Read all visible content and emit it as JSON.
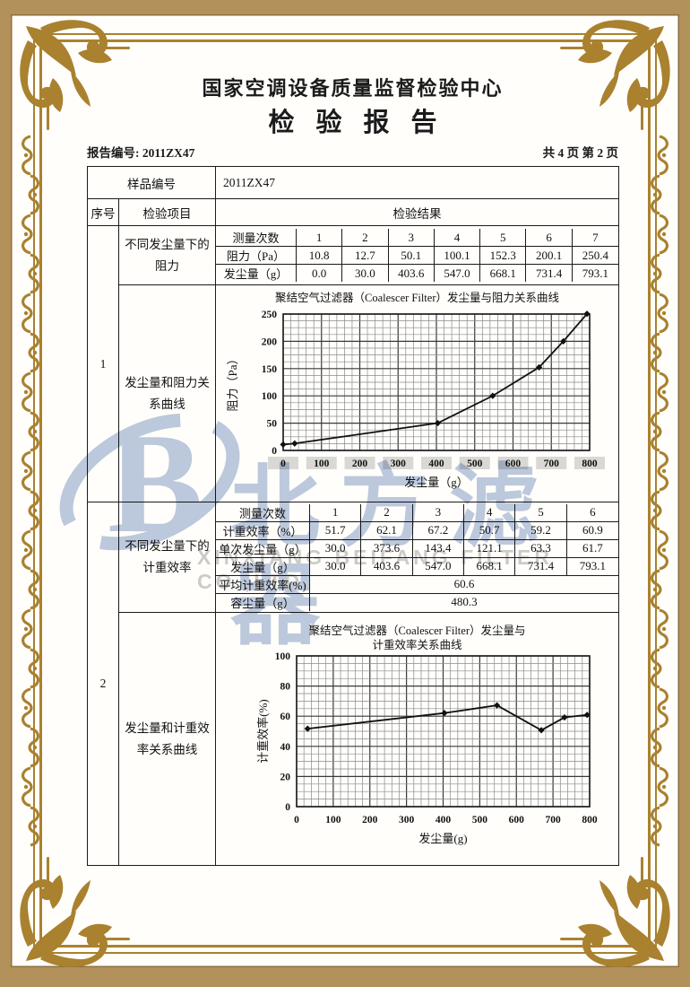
{
  "header": {
    "center_name": "国家空调设备质量监督检验中心",
    "report_title": "检验报告",
    "report_no_label": "报告编号:",
    "report_no_value": "2011ZX47",
    "page_info": "共 4 页 第 2 页"
  },
  "table": {
    "sample_no_label": "样品编号",
    "sample_no_value": "2011ZX47",
    "seq_header": "序号",
    "item_header": "检验项目",
    "result_header": "检验结果"
  },
  "sections": [
    {
      "seq": "1",
      "item_table_label": "不同发尘量下的阻力",
      "item_chart_label": "发尘量和阻力关系曲线",
      "table": {
        "header_label": "测量次数",
        "header_values": [
          "1",
          "2",
          "3",
          "4",
          "5",
          "6",
          "7"
        ],
        "rows": [
          {
            "label": "阻力（Pa）",
            "values": [
              "10.8",
              "12.7",
              "50.1",
              "100.1",
              "152.3",
              "200.1",
              "250.4"
            ]
          },
          {
            "label": "发尘量（g）",
            "values": [
              "0.0",
              "30.0",
              "403.6",
              "547.0",
              "668.1",
              "731.4",
              "793.1"
            ]
          }
        ]
      }
    },
    {
      "seq": "2",
      "item_table_label": "不同发尘量下的计重效率",
      "item_chart_label": "发尘量和计重效率关系曲线",
      "table": {
        "header_label": "测量次数",
        "header_values": [
          "1",
          "2",
          "3",
          "4",
          "5",
          "6"
        ],
        "rows": [
          {
            "label": "计重效率（%）",
            "values": [
              "51.7",
              "62.1",
              "67.2",
              "50.7",
              "59.2",
              "60.9"
            ]
          },
          {
            "label": "单次发尘量（g）",
            "values": [
              "30.0",
              "373.6",
              "143.4",
              "121.1",
              "63.3",
              "61.7"
            ]
          },
          {
            "label": "发尘量（g）",
            "values": [
              "30.0",
              "403.6",
              "547.0",
              "668.1",
              "731.4",
              "793.1"
            ]
          }
        ],
        "span_rows": [
          {
            "label": "平均计重效率(%)",
            "value": "60.6"
          },
          {
            "label": "容尘量（g）",
            "value": "480.3"
          }
        ]
      }
    }
  ],
  "chart_data": [
    {
      "type": "line",
      "title": "聚结空气过滤器（Coalescer Filter）发尘量与阻力关系曲线",
      "xlabel": "发尘量（g）",
      "ylabel": "阻力（Pa）",
      "x": [
        0,
        30.0,
        403.6,
        547.0,
        668.1,
        731.4,
        793.1
      ],
      "y": [
        10.8,
        12.7,
        50.1,
        100.1,
        152.3,
        200.1,
        250.4
      ],
      "xlim": [
        0,
        800
      ],
      "ylim": [
        0,
        250
      ],
      "xticks": [
        0,
        100,
        200,
        300,
        400,
        500,
        600,
        700,
        800
      ],
      "yticks": [
        0,
        50,
        100,
        150,
        200,
        250
      ],
      "grid": true,
      "legend": "none",
      "marker": "diamond"
    },
    {
      "type": "line",
      "title": "聚结空气过滤器（Coalescer Filter）发尘量与计重效率关系曲线",
      "title_lines": [
        "聚结空气过滤器（Coalescer Filter）发尘量与",
        "计重效率关系曲线"
      ],
      "xlabel": "发尘量(g)",
      "ylabel": "计重效率(%)",
      "x": [
        30.0,
        403.6,
        547.0,
        668.1,
        731.4,
        793.1
      ],
      "y": [
        51.7,
        62.1,
        67.2,
        50.7,
        59.2,
        60.9
      ],
      "xlim": [
        0,
        800
      ],
      "ylim": [
        0,
        100
      ],
      "xticks": [
        0,
        100,
        200,
        300,
        400,
        500,
        600,
        700,
        800
      ],
      "yticks": [
        0,
        20,
        40,
        60,
        80,
        100
      ],
      "grid": true,
      "legend": "none",
      "marker": "diamond"
    }
  ],
  "watermark": {
    "logo_letter": "B",
    "cn_text": "北方滤器",
    "en_text": "XINXIANG BEIFANG FILTER CO.,LTD."
  },
  "colors": {
    "frame_gold": "#a9812f",
    "frame_tan": "#b2925a",
    "ink": "#1b1b1b",
    "watermark_blue": "#bcc9e0",
    "watermark_gray": "#cccccc"
  }
}
